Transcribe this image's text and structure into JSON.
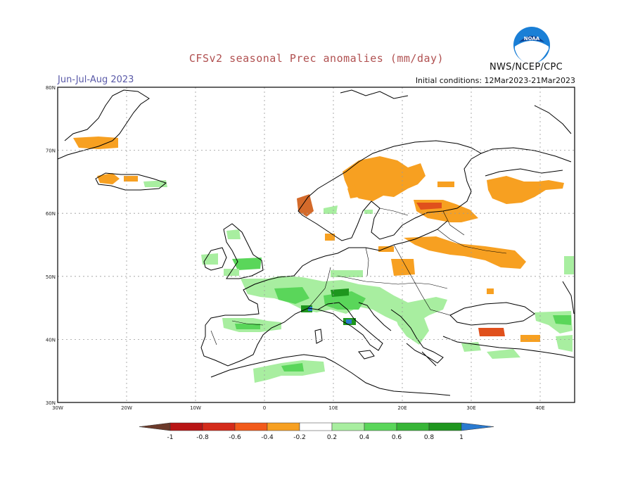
{
  "header": {
    "title": "CFSv2 seasonal Prec anomalies (mm/day)",
    "period": "Jun-Jul-Aug 2023",
    "initial_conditions": "Initial conditions: 12Mar2023-21Mar2023",
    "agency": "NWS/NCEP/CPC",
    "logo_text": "NOAA"
  },
  "map": {
    "lon_range": [
      -30,
      45
    ],
    "lat_range": [
      30,
      80
    ],
    "lat_labels": [
      "80N",
      "70N",
      "60N",
      "50N",
      "40N",
      "30N"
    ],
    "lon_labels": [
      "30W",
      "20W",
      "10W",
      "0",
      "10E",
      "20E",
      "30E",
      "40E"
    ],
    "land_fill": "#ffffff",
    "coast_color": "#000000"
  },
  "colorbar": {
    "labels": [
      "-1",
      "-0.8",
      "-0.6",
      "-0.4",
      "-0.2",
      "0.2",
      "0.4",
      "0.6",
      "0.8",
      "1"
    ],
    "colors": [
      "#6b3a2a",
      "#b81414",
      "#d42b1a",
      "#f25a1a",
      "#f7a021",
      "#ffffff",
      "#a8eea0",
      "#5ad65a",
      "#37b537",
      "#1e961e",
      "#0a7a0a",
      "#2a7ad0"
    ]
  }
}
